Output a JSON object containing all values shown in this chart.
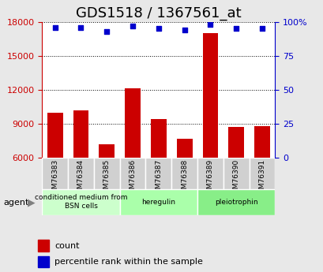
{
  "title": "GDS1518 / 1367561_at",
  "categories": [
    "GSM76383",
    "GSM76384",
    "GSM76385",
    "GSM76386",
    "GSM76387",
    "GSM76388",
    "GSM76389",
    "GSM76390",
    "GSM76391"
  ],
  "bar_values": [
    10000,
    10200,
    7200,
    12100,
    9400,
    7700,
    17000,
    8700,
    8800
  ],
  "percentile_values": [
    96,
    96,
    93,
    97,
    95,
    94,
    98,
    95,
    95
  ],
  "bar_color": "#cc0000",
  "dot_color": "#0000cc",
  "ylim_left": [
    6000,
    18000
  ],
  "ylim_right": [
    0,
    100
  ],
  "yticks_left": [
    6000,
    9000,
    12000,
    15000,
    18000
  ],
  "yticks_right": [
    0,
    25,
    50,
    75,
    100
  ],
  "yticklabels_right": [
    "0",
    "25",
    "50",
    "75",
    "100%"
  ],
  "groups": [
    {
      "label": "conditioned medium from\nBSN cells",
      "start": 0,
      "end": 3,
      "color": "#ccffcc"
    },
    {
      "label": "heregulin",
      "start": 3,
      "end": 6,
      "color": "#aaffaa"
    },
    {
      "label": "pleiotrophin",
      "start": 6,
      "end": 9,
      "color": "#88ee88"
    }
  ],
  "agent_label": "agent",
  "legend_items": [
    {
      "color": "#cc0000",
      "label": "count"
    },
    {
      "color": "#0000cc",
      "label": "percentile rank within the sample"
    }
  ],
  "background_color": "#e8e8e8",
  "plot_bg_color": "#ffffff",
  "grid_color": "#000000",
  "title_fontsize": 13,
  "tick_fontsize": 8,
  "label_fontsize": 8
}
